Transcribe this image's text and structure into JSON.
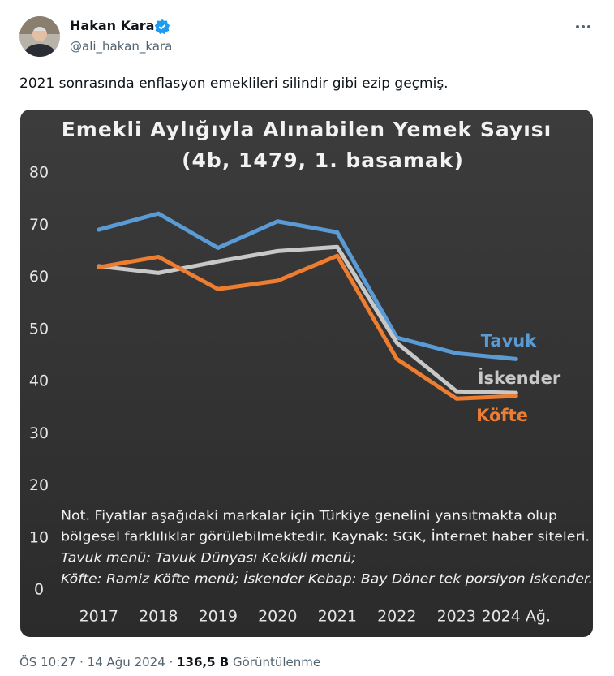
{
  "tweet": {
    "name": "Hakan Kara",
    "handle": "@ali_hakan_kara",
    "text": "2021 sonrasında enflasyon emeklileri silindir gibi ezip geçmiş.",
    "time": "ÖS 10:27",
    "separator": "·",
    "date": "14 Ağu 2024",
    "views": "136,5 B",
    "views_label": "Görüntülenme"
  },
  "chart_data": {
    "type": "line",
    "title": "Emekli Aylığıyla Alınabilen Yemek Sayısı",
    "subtitle": "(4b, 1479, 1. basamak)",
    "categories": [
      "2017",
      "2018",
      "2019",
      "2020",
      "2021",
      "2022",
      "2023",
      "2024 Ağ."
    ],
    "series": [
      {
        "name": "Tavuk",
        "color": "#5b9bd5",
        "values": [
          69.1,
          72.2,
          65.6,
          70.7,
          68.6,
          48.4,
          45.4,
          44.3
        ]
      },
      {
        "name": "İskender",
        "color": "#c8c8c8",
        "values": [
          62.1,
          60.8,
          63.0,
          65.0,
          65.8,
          47.4,
          38.1,
          37.8
        ]
      },
      {
        "name": "Köfte",
        "color": "#ed7d31",
        "values": [
          61.9,
          63.9,
          57.7,
          59.3,
          64.1,
          44.3,
          36.7,
          37.2
        ]
      }
    ],
    "ylim": [
      0,
      80
    ],
    "yticks": [
      0,
      10,
      20,
      30,
      40,
      50,
      60,
      70,
      80
    ],
    "grid": false,
    "notes": [
      "Not. Fiyatlar aşağıdaki markalar için Türkiye genelini yansıtmakta olup",
      "bölgesel farklılıklar görülebilmektedir. Kaynak: SGK, İnternet haber siteleri.",
      "Tavuk menü: Tavuk Dünyası Kekikli menü;",
      "Köfte: Ramiz Köfte menü; İskender Kebap: Bay Döner tek porsiyon iskender."
    ]
  }
}
